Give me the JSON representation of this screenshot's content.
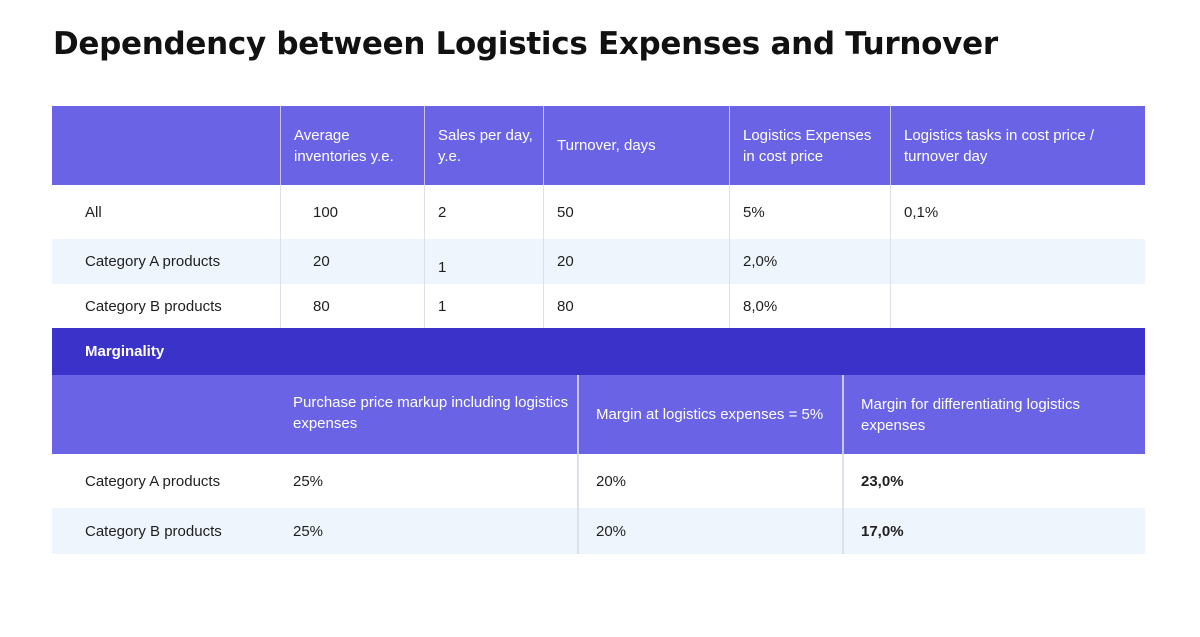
{
  "title": "Dependency between Logistics Expenses and Turnover",
  "turnover": {
    "headers": [
      "",
      "Average inventories y.e.",
      "Sales per day, y.e.",
      "Turnover, days",
      "Logistics Expenses in cost price",
      "Logistics tasks in cost price / turnover day"
    ],
    "rows": [
      [
        "All",
        "100",
        "2",
        "50",
        "5%",
        "0,1%"
      ],
      [
        "Category A products",
        "20",
        "1",
        "20",
        "2,0%",
        ""
      ],
      [
        "Category B products",
        "80",
        "1",
        "80",
        "8,0%",
        ""
      ]
    ]
  },
  "marginality": {
    "section_label": "Marginality",
    "headers": [
      "",
      "Purchase price markup including logistics expenses",
      "Margin at logistics expenses = 5%",
      "Margin for differentiating logistics expenses"
    ],
    "rows": [
      [
        "Category A products",
        "25%",
        "20%",
        "23,0%"
      ],
      [
        "Category B products",
        "25%",
        "20%",
        "17,0%"
      ]
    ]
  },
  "colors": {
    "header_bg": "#6b63e6",
    "section_bg": "#3a32c9",
    "band_bg": "#eef5fc"
  }
}
